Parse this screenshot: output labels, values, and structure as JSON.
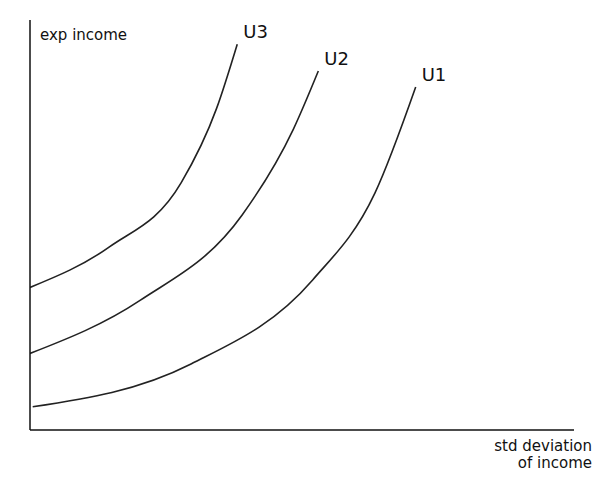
{
  "chart_data": {
    "type": "line",
    "x_label": "std deviation of income",
    "y_label": "exp income",
    "xlim": [
      0,
      10
    ],
    "ylim": [
      0,
      9
    ],
    "tick_labels": false,
    "grid": false,
    "series": [
      {
        "name": "U1",
        "color": "#222222",
        "x": [
          0.05,
          2.96,
          5.2,
          6.34,
          7.09
        ],
        "values": [
          0.51,
          1.45,
          3.3,
          5.2,
          7.53
        ]
      },
      {
        "name": "U2",
        "color": "#222222",
        "x": [
          0,
          2.03,
          3.9,
          4.84,
          5.3
        ],
        "values": [
          1.68,
          2.85,
          4.72,
          6.6,
          7.88
        ]
      },
      {
        "name": "U3",
        "color": "#222222",
        "x": [
          0,
          1.46,
          2.78,
          3.43,
          3.81
        ],
        "values": [
          3.13,
          4.02,
          5.43,
          7.06,
          8.47
        ]
      }
    ]
  }
}
